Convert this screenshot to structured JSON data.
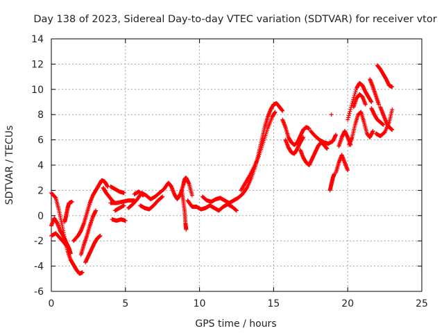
{
  "chart_data": {
    "type": "scatter",
    "title": "Day 138 of 2023, Sidereal Day-to-day VTEC variation (SDTVAR) for receiver vtor",
    "xlabel": "GPS time / hours",
    "ylabel": "SDTVAR / TECUs",
    "xlim": [
      0,
      25
    ],
    "ylim": [
      -6,
      14
    ],
    "xticks": [
      0,
      5,
      10,
      15,
      20,
      25
    ],
    "yticks": [
      -6,
      -4,
      -2,
      0,
      2,
      4,
      6,
      8,
      10,
      12,
      14
    ],
    "grid": true,
    "marker": "+",
    "color": "#ff0000",
    "series": [
      {
        "name": "SDTVAR",
        "tracks": [
          [
            [
              0.0,
              1.8
            ],
            [
              0.3,
              1.4
            ],
            [
              0.5,
              0.5
            ],
            [
              0.7,
              -0.6
            ],
            [
              0.9,
              -1.8
            ],
            [
              1.1,
              -2.8
            ],
            [
              1.3,
              -3.5
            ],
            [
              1.5,
              -3.9
            ],
            [
              1.7,
              -4.3
            ],
            [
              1.9,
              -4.6
            ],
            [
              2.1,
              -4.5
            ]
          ],
          [
            [
              0.0,
              -0.8
            ],
            [
              0.2,
              -0.2
            ],
            [
              0.4,
              -0.6
            ],
            [
              0.6,
              -1.2
            ],
            [
              0.8,
              -1.6
            ],
            [
              1.0,
              -2.1
            ],
            [
              1.2,
              -2.6
            ],
            [
              1.3,
              -3.0
            ]
          ],
          [
            [
              0.0,
              -1.6
            ],
            [
              0.3,
              -1.4
            ],
            [
              0.6,
              -1.8
            ],
            [
              0.9,
              -2.2
            ],
            [
              1.1,
              -2.5
            ]
          ],
          [
            [
              0.9,
              -0.5
            ],
            [
              1.0,
              0.0
            ],
            [
              1.1,
              0.6
            ],
            [
              1.2,
              1.0
            ],
            [
              1.4,
              1.1
            ]
          ],
          [
            [
              1.5,
              -2.0
            ],
            [
              1.8,
              -1.6
            ],
            [
              2.0,
              -1.2
            ],
            [
              2.2,
              -0.6
            ],
            [
              2.4,
              0.2
            ],
            [
              2.6,
              1.0
            ],
            [
              2.8,
              1.6
            ],
            [
              3.0,
              2.0
            ],
            [
              3.2,
              2.4
            ],
            [
              3.4,
              2.8
            ],
            [
              3.6,
              2.7
            ],
            [
              3.8,
              2.3
            ]
          ],
          [
            [
              2.3,
              -3.7
            ],
            [
              2.5,
              -3.2
            ],
            [
              2.7,
              -2.7
            ],
            [
              2.9,
              -2.2
            ],
            [
              3.1,
              -1.8
            ],
            [
              3.3,
              -1.6
            ]
          ],
          [
            [
              2.0,
              -3.1
            ],
            [
              2.2,
              -2.3
            ],
            [
              2.4,
              -1.6
            ],
            [
              2.6,
              -0.8
            ],
            [
              2.8,
              -0.1
            ],
            [
              3.0,
              0.4
            ]
          ],
          [
            [
              3.5,
              2.2
            ],
            [
              3.7,
              1.8
            ],
            [
              3.9,
              1.5
            ],
            [
              4.1,
              1.2
            ],
            [
              4.3,
              1.0
            ]
          ],
          [
            [
              4.0,
              2.3
            ],
            [
              4.3,
              2.1
            ],
            [
              4.6,
              1.9
            ],
            [
              4.9,
              1.8
            ]
          ],
          [
            [
              4.0,
              1.0
            ],
            [
              4.4,
              1.0
            ],
            [
              4.8,
              1.1
            ],
            [
              5.2,
              1.2
            ],
            [
              5.6,
              1.2
            ]
          ],
          [
            [
              4.1,
              -0.3
            ],
            [
              4.4,
              -0.4
            ],
            [
              4.7,
              -0.3
            ],
            [
              5.0,
              -0.4
            ]
          ],
          [
            [
              4.3,
              0.4
            ],
            [
              4.6,
              0.6
            ],
            [
              4.9,
              0.8
            ]
          ],
          [
            [
              5.2,
              0.6
            ],
            [
              5.5,
              0.9
            ],
            [
              5.8,
              1.3
            ],
            [
              6.1,
              1.8
            ],
            [
              6.4,
              1.6
            ],
            [
              6.7,
              1.3
            ],
            [
              7.0,
              1.5
            ],
            [
              7.3,
              1.8
            ],
            [
              7.6,
              2.1
            ],
            [
              7.9,
              2.6
            ],
            [
              8.1,
              2.3
            ],
            [
              8.3,
              1.7
            ],
            [
              8.5,
              1.3
            ],
            [
              8.7,
              1.7
            ],
            [
              8.9,
              2.4
            ],
            [
              9.0,
              2.9
            ],
            [
              9.1,
              3.0
            ],
            [
              9.3,
              2.5
            ],
            [
              9.5,
              1.6
            ]
          ],
          [
            [
              5.6,
              1.7
            ],
            [
              5.9,
              1.9
            ],
            [
              6.2,
              1.6
            ]
          ],
          [
            [
              6.0,
              0.8
            ],
            [
              6.3,
              0.6
            ],
            [
              6.6,
              0.5
            ],
            [
              6.9,
              0.8
            ],
            [
              7.2,
              1.2
            ],
            [
              7.5,
              1.5
            ]
          ],
          [
            [
              8.8,
              2.0
            ],
            [
              8.9,
              1.2
            ],
            [
              9.0,
              0.3
            ],
            [
              9.05,
              -0.6
            ],
            [
              9.1,
              -1.1
            ]
          ],
          [
            [
              9.2,
              1.2
            ],
            [
              9.5,
              0.7
            ],
            [
              9.8,
              0.7
            ],
            [
              10.1,
              0.5
            ],
            [
              10.4,
              0.6
            ],
            [
              10.7,
              0.8
            ],
            [
              11.0,
              0.6
            ],
            [
              11.3,
              0.4
            ],
            [
              11.6,
              0.7
            ],
            [
              11.9,
              0.9
            ],
            [
              12.2,
              0.7
            ],
            [
              12.5,
              0.4
            ]
          ],
          [
            [
              10.2,
              1.5
            ],
            [
              10.5,
              1.2
            ],
            [
              10.8,
              1.1
            ],
            [
              11.1,
              1.3
            ],
            [
              11.4,
              1.4
            ],
            [
              11.7,
              1.2
            ],
            [
              12.0,
              1.0
            ],
            [
              12.3,
              1.2
            ],
            [
              12.6,
              1.4
            ],
            [
              12.9,
              1.7
            ],
            [
              13.2,
              2.2
            ],
            [
              13.5,
              3.0
            ],
            [
              13.8,
              4.0
            ],
            [
              14.0,
              5.0
            ],
            [
              14.2,
              6.0
            ],
            [
              14.4,
              7.0
            ],
            [
              14.6,
              7.8
            ],
            [
              14.8,
              8.4
            ],
            [
              15.0,
              8.8
            ],
            [
              15.2,
              8.9
            ],
            [
              15.4,
              8.6
            ],
            [
              15.6,
              8.3
            ]
          ],
          [
            [
              12.8,
              2.0
            ],
            [
              13.1,
              2.6
            ],
            [
              13.4,
              3.2
            ],
            [
              13.7,
              3.9
            ],
            [
              14.0,
              4.7
            ],
            [
              14.3,
              5.8
            ],
            [
              14.6,
              6.9
            ],
            [
              14.9,
              7.8
            ],
            [
              15.1,
              8.2
            ]
          ],
          [
            [
              15.6,
              7.6
            ],
            [
              15.8,
              7.0
            ],
            [
              16.0,
              6.2
            ],
            [
              16.2,
              5.8
            ],
            [
              16.4,
              5.6
            ],
            [
              16.6,
              5.8
            ],
            [
              16.8,
              6.3
            ],
            [
              17.0,
              6.8
            ],
            [
              17.2,
              7.0
            ],
            [
              17.4,
              6.9
            ]
          ],
          [
            [
              15.8,
              6.0
            ],
            [
              16.0,
              5.4
            ],
            [
              16.2,
              5.0
            ],
            [
              16.4,
              4.9
            ],
            [
              16.6,
              5.3
            ],
            [
              16.8,
              5.8
            ],
            [
              17.0,
              6.2
            ]
          ],
          [
            [
              16.8,
              5.2
            ],
            [
              17.0,
              4.6
            ],
            [
              17.2,
              4.2
            ],
            [
              17.4,
              4.0
            ],
            [
              17.6,
              4.5
            ],
            [
              17.8,
              5.0
            ],
            [
              18.0,
              5.5
            ],
            [
              18.2,
              5.8
            ],
            [
              18.4,
              5.6
            ],
            [
              18.6,
              5.3
            ]
          ],
          [
            [
              17.5,
              6.7
            ],
            [
              17.8,
              6.3
            ],
            [
              18.1,
              6.0
            ],
            [
              18.4,
              5.8
            ],
            [
              18.7,
              5.7
            ],
            [
              19.0,
              5.9
            ],
            [
              19.2,
              6.4
            ]
          ],
          [
            [
              18.8,
              2.0
            ],
            [
              18.9,
              2.5
            ],
            [
              19.0,
              3.0
            ],
            [
              19.1,
              3.3
            ]
          ],
          [
            [
              19.2,
              3.4
            ],
            [
              19.4,
              4.2
            ],
            [
              19.6,
              4.8
            ],
            [
              19.8,
              4.2
            ],
            [
              20.0,
              3.6
            ]
          ],
          [
            [
              19.4,
              5.5
            ],
            [
              19.6,
              6.2
            ],
            [
              19.8,
              6.7
            ],
            [
              20.0,
              6.2
            ],
            [
              20.2,
              5.6
            ]
          ],
          [
            [
              18.9,
              8.0
            ]
          ],
          [
            [
              20.1,
              5.6
            ],
            [
              20.3,
              6.2
            ],
            [
              20.5,
              7.2
            ],
            [
              20.7,
              8.0
            ],
            [
              20.9,
              8.2
            ],
            [
              21.1,
              7.4
            ],
            [
              21.3,
              6.5
            ],
            [
              21.5,
              6.2
            ],
            [
              21.7,
              6.7
            ]
          ],
          [
            [
              20.0,
              7.6
            ],
            [
              20.3,
              8.9
            ],
            [
              20.6,
              10.1
            ],
            [
              20.8,
              10.5
            ],
            [
              21.0,
              10.3
            ],
            [
              21.2,
              9.8
            ],
            [
              21.4,
              9.4
            ],
            [
              21.6,
              9.0
            ]
          ],
          [
            [
              20.4,
              8.6
            ],
            [
              20.6,
              9.3
            ],
            [
              20.8,
              9.6
            ],
            [
              21.0,
              9.4
            ],
            [
              21.2,
              8.8
            ]
          ],
          [
            [
              21.6,
              8.5
            ],
            [
              21.8,
              8.0
            ],
            [
              22.0,
              7.6
            ],
            [
              22.2,
              7.4
            ],
            [
              22.4,
              7.2
            ]
          ],
          [
            [
              22.0,
              11.9
            ],
            [
              22.2,
              11.6
            ],
            [
              22.4,
              11.2
            ],
            [
              22.6,
              10.8
            ],
            [
              22.8,
              10.3
            ],
            [
              23.0,
              10.2
            ]
          ],
          [
            [
              22.2,
              8.6
            ],
            [
              22.4,
              8.0
            ],
            [
              22.6,
              7.4
            ],
            [
              22.8,
              7.0
            ],
            [
              23.0,
              6.8
            ]
          ],
          [
            [
              21.9,
              6.5
            ],
            [
              22.2,
              6.3
            ],
            [
              22.5,
              6.6
            ],
            [
              22.8,
              7.4
            ],
            [
              23.0,
              8.4
            ]
          ],
          [
            [
              21.5,
              10.8
            ],
            [
              21.7,
              10.2
            ],
            [
              21.9,
              9.5
            ],
            [
              22.1,
              8.8
            ]
          ]
        ]
      }
    ]
  }
}
